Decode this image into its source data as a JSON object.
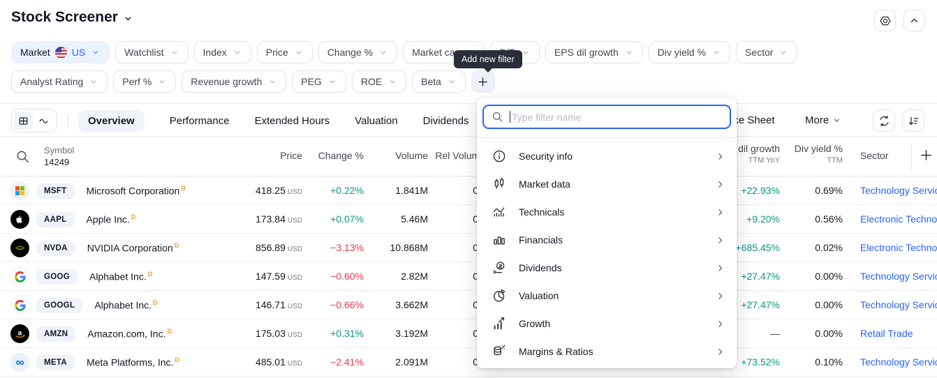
{
  "header": {
    "title": "Stock Screener",
    "actions": {
      "settings_icon": "settings-hexagon",
      "collapse_icon": "chevron-up"
    }
  },
  "filters": {
    "tooltip": "Add new filter",
    "row1": [
      {
        "label": "Market",
        "value": "US",
        "flag": "us-flag",
        "active": true
      },
      {
        "label": "Watchlist"
      },
      {
        "label": "Index"
      },
      {
        "label": "Price"
      },
      {
        "label": "Change %"
      },
      {
        "label": "Market cap"
      },
      {
        "label": "P/E"
      },
      {
        "label": "EPS dil growth"
      },
      {
        "label": "Div yield %"
      },
      {
        "label": "Sector"
      }
    ],
    "row2": [
      {
        "label": "Analyst Rating"
      },
      {
        "label": "Perf %"
      },
      {
        "label": "Revenue growth"
      },
      {
        "label": "PEG"
      },
      {
        "label": "ROE"
      },
      {
        "label": "Beta"
      }
    ]
  },
  "toolbar": {
    "tabs": [
      "Overview",
      "Performance",
      "Extended Hours",
      "Valuation",
      "Dividends"
    ],
    "active_tab": "Overview",
    "partial_tab": "Balance Sheet",
    "more_label": "More"
  },
  "popup": {
    "search_placeholder": "Type filter name",
    "items": [
      {
        "label": "Security info",
        "icon": "info"
      },
      {
        "label": "Market data",
        "icon": "candles"
      },
      {
        "label": "Technicals",
        "icon": "technicals"
      },
      {
        "label": "Financials",
        "icon": "bar-chart"
      },
      {
        "label": "Dividends",
        "icon": "money-bag"
      },
      {
        "label": "Valuation",
        "icon": "pie-chart"
      },
      {
        "label": "Growth",
        "icon": "growth"
      },
      {
        "label": "Margins & Ratios",
        "icon": "coins-percent"
      }
    ]
  },
  "table": {
    "symbol_header": "Symbol",
    "symbol_count": "14249",
    "columns": {
      "price": "Price",
      "change": "Change %",
      "volume": "Volume",
      "rel_volume": "Rel Volume",
      "eps": {
        "label": "EPS dil growth",
        "sub": "TTM YoY"
      },
      "div_yield": {
        "label": "Div yield %",
        "sub": "TTM"
      },
      "sector": "Sector"
    },
    "rows": [
      {
        "ticker": "MSFT",
        "name": "Microsoft Corporation",
        "marker": "D",
        "logo": "msft",
        "price": "418.25",
        "currency": "USD",
        "change": "+0.22%",
        "change_dir": "up",
        "volume": "1.841M",
        "rel_volume": "0",
        "eps_growth": "+22.93%",
        "div_yield": "0.69%",
        "sector": "Technology Services"
      },
      {
        "ticker": "AAPL",
        "name": "Apple Inc.",
        "marker": "D",
        "logo": "aapl",
        "price": "173.84",
        "currency": "USD",
        "change": "+0.07%",
        "change_dir": "up",
        "volume": "5.46M",
        "rel_volume": "0",
        "eps_growth": "+9.20%",
        "div_yield": "0.56%",
        "sector": "Electronic Technology"
      },
      {
        "ticker": "NVDA",
        "name": "NVIDIA Corporation",
        "marker": "D",
        "logo": "nvda",
        "price": "856.89",
        "currency": "USD",
        "change": "−3.13%",
        "change_dir": "down",
        "volume": "10.868M",
        "rel_volume": "0",
        "eps_growth": "+685.45%",
        "div_yield": "0.02%",
        "sector": "Electronic Technology"
      },
      {
        "ticker": "GOOG",
        "name": "Alphabet Inc.",
        "marker": "D",
        "logo": "goog",
        "price": "147.59",
        "currency": "USD",
        "change": "−0.60%",
        "change_dir": "down",
        "volume": "2.82M",
        "rel_volume": "0",
        "eps_growth": "+27.47%",
        "div_yield": "0.00%",
        "sector": "Technology Services"
      },
      {
        "ticker": "GOOGL",
        "name": "Alphabet Inc.",
        "marker": "D",
        "logo": "goog",
        "price": "146.71",
        "currency": "USD",
        "change": "−0.66%",
        "change_dir": "down",
        "volume": "3.662M",
        "rel_volume": "0",
        "eps_growth": "+27.47%",
        "div_yield": "0.00%",
        "sector": "Technology Services"
      },
      {
        "ticker": "AMZN",
        "name": "Amazon.com, Inc.",
        "marker": "D",
        "logo": "amzn",
        "price": "175.03",
        "currency": "USD",
        "change": "+0.31%",
        "change_dir": "up",
        "volume": "3.192M",
        "rel_volume": "0",
        "eps_growth": "—",
        "div_yield": "0.00%",
        "sector": "Retail Trade"
      },
      {
        "ticker": "META",
        "name": "Meta Platforms, Inc.",
        "marker": "D",
        "logo": "meta",
        "price": "485.01",
        "currency": "USD",
        "change": "−2.41%",
        "change_dir": "down",
        "volume": "2.091M",
        "rel_volume": "0",
        "eps_growth": "+73.52%",
        "div_yield": "0.10%",
        "sector": "Technology Services"
      }
    ]
  }
}
